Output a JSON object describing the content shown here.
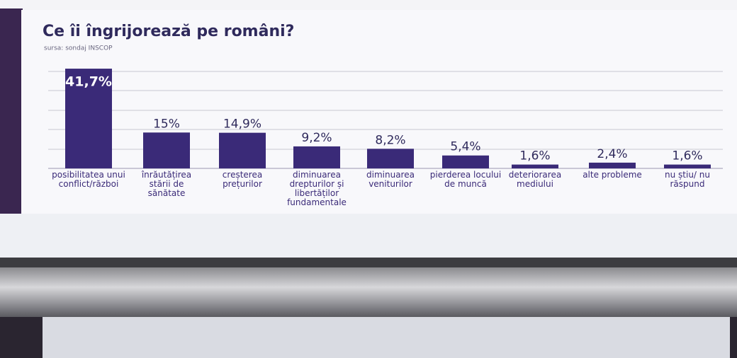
{
  "chart_data": {
    "type": "bar",
    "title": "Ce îi îngrijorează pe români?",
    "subtitle": "sursa: sondaj INSCOP",
    "categories": [
      "posibilitatea unui conflict/război",
      "înrăutățirea stării de sănătate",
      "creșterea prețurilor",
      "diminuarea drepturilor și libertăților fundamentale",
      "diminuarea veniturilor",
      "pierderea locului de muncă",
      "deteriorarea mediului",
      "alte probleme",
      "nu știu/ nu răspund"
    ],
    "values": [
      41.7,
      15,
      14.9,
      9.2,
      8.2,
      5.4,
      1.6,
      2.4,
      1.6
    ],
    "value_labels": [
      "41,7%",
      "15%",
      "14,9%",
      "9,2%",
      "8,2%",
      "5,4%",
      "1,6%",
      "2,4%",
      "1,6%"
    ],
    "color": "#3a2a78",
    "ylim": [
      0,
      45
    ]
  }
}
